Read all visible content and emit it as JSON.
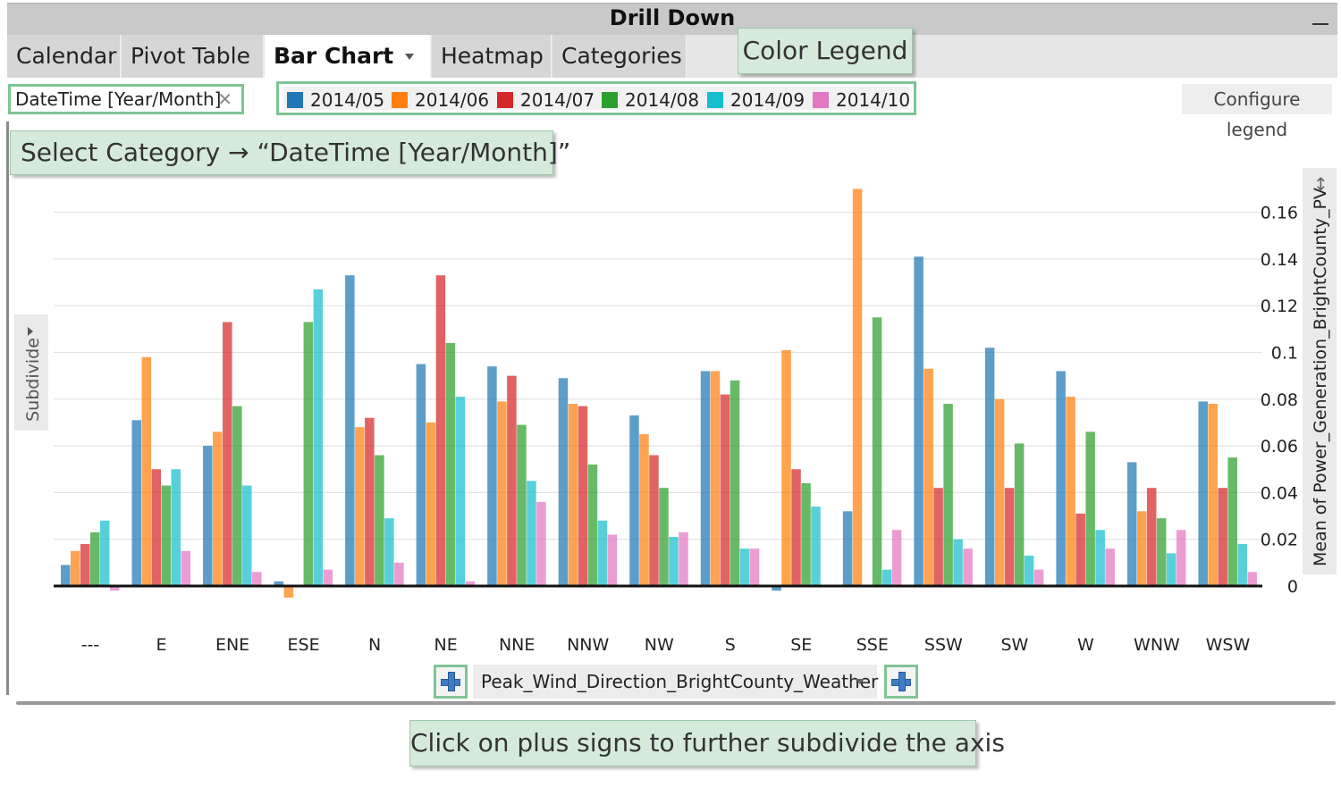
{
  "window": {
    "title": "Drill Down"
  },
  "tabs": [
    {
      "label": "Calendar",
      "active": false
    },
    {
      "label": "Pivot Table",
      "active": false
    },
    {
      "label": "Bar Chart",
      "active": true
    },
    {
      "label": "Heatmap",
      "active": false
    },
    {
      "label": "Categories",
      "active": false
    }
  ],
  "category_chip": {
    "label": "DateTime [Year/Month]",
    "remove_icon": "close-icon"
  },
  "legend": {
    "items": [
      {
        "label": "2014/05",
        "color": "#1f77b4"
      },
      {
        "label": "2014/06",
        "color": "#ff7f0e"
      },
      {
        "label": "2014/07",
        "color": "#d62728"
      },
      {
        "label": "2014/08",
        "color": "#2ca02c"
      },
      {
        "label": "2014/09",
        "color": "#17becf"
      },
      {
        "label": "2014/10",
        "color": "#e377c2"
      }
    ],
    "configure_label": "Configure legend"
  },
  "callouts": {
    "color_legend": "Color Legend",
    "select_category": "Select Category → “DateTime [Year/Month]”",
    "plus_signs": "Click on plus signs to further subdivide the axis"
  },
  "subdivide": {
    "label": "Subdivide"
  },
  "y_axis_selector": {
    "label": "Mean of Power_Generation_BrightCounty_PV",
    "icon": "resize-vertical-icon"
  },
  "x_axis_selector": {
    "label": "Peak_Wind_Direction_BrightCounty_Weather",
    "plus_icon": "plus-icon"
  },
  "chart_data": {
    "type": "bar",
    "ylabel": "Mean of Power_Generation_BrightCounty_PV",
    "xlabel": "Peak_Wind_Direction_BrightCounty_Weather",
    "ylim": [
      -0.005,
      0.17
    ],
    "yticks": [
      0,
      0.02,
      0.04,
      0.06,
      0.08,
      0.1,
      0.12,
      0.14,
      0.16
    ],
    "grid": true,
    "categories": [
      "---",
      "E",
      "ENE",
      "ESE",
      "N",
      "NE",
      "NNE",
      "NNW",
      "NW",
      "S",
      "SE",
      "SSE",
      "SSW",
      "SW",
      "W",
      "WNW",
      "WSW"
    ],
    "series": [
      {
        "name": "2014/05",
        "color": "#1f77b4",
        "values": [
          0.009,
          0.071,
          0.06,
          0.002,
          0.133,
          0.095,
          0.094,
          0.089,
          0.073,
          0.092,
          -0.002,
          0.032,
          0.141,
          0.102,
          0.092,
          0.053,
          0.079
        ]
      },
      {
        "name": "2014/06",
        "color": "#ff7f0e",
        "values": [
          0.015,
          0.098,
          0.066,
          -0.005,
          0.068,
          0.07,
          0.079,
          0.078,
          0.065,
          0.092,
          0.101,
          0.17,
          0.093,
          0.08,
          0.081,
          0.032,
          0.078
        ]
      },
      {
        "name": "2014/07",
        "color": "#d62728",
        "values": [
          0.018,
          0.05,
          0.113,
          0.0,
          0.072,
          0.133,
          0.09,
          0.077,
          0.056,
          0.082,
          0.05,
          0.0,
          0.042,
          0.042,
          0.031,
          0.042,
          0.042
        ]
      },
      {
        "name": "2014/08",
        "color": "#2ca02c",
        "values": [
          0.023,
          0.043,
          0.077,
          0.113,
          0.056,
          0.104,
          0.069,
          0.052,
          0.042,
          0.088,
          0.044,
          0.115,
          0.078,
          0.061,
          0.066,
          0.029,
          0.055
        ]
      },
      {
        "name": "2014/09",
        "color": "#17becf",
        "values": [
          0.028,
          0.05,
          0.043,
          0.127,
          0.029,
          0.081,
          0.045,
          0.028,
          0.021,
          0.016,
          0.034,
          0.007,
          0.02,
          0.013,
          0.024,
          0.014,
          0.018
        ]
      },
      {
        "name": "2014/10",
        "color": "#e377c2",
        "values": [
          -0.002,
          0.015,
          0.006,
          0.007,
          0.01,
          0.002,
          0.036,
          0.022,
          0.023,
          0.016,
          0.0,
          0.024,
          0.016,
          0.007,
          0.016,
          0.024,
          0.006
        ]
      }
    ]
  }
}
